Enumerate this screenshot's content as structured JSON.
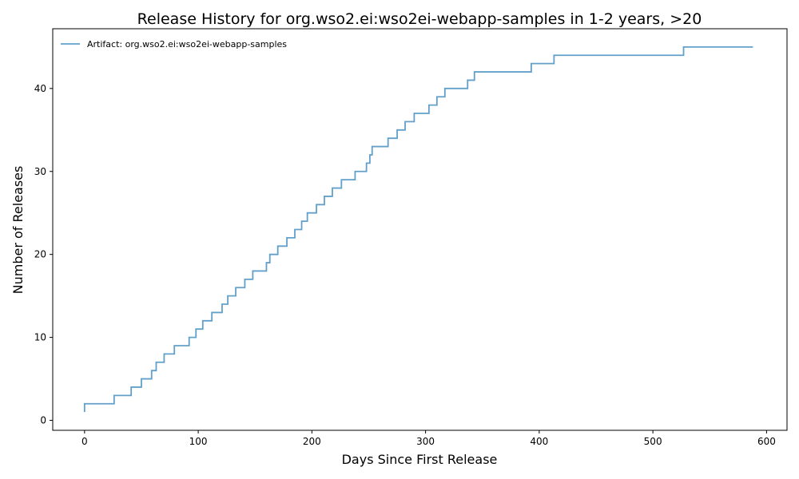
{
  "chart_data": {
    "type": "line",
    "title": "Release History for org.wso2.ei:wso2ei-webapp-samples in 1-2 years, >20",
    "xlabel": "Days Since First Release",
    "ylabel": "Number of Releases",
    "xlim": [
      -28,
      618
    ],
    "ylim": [
      -1.2,
      47.2
    ],
    "xticks": [
      0,
      100,
      200,
      300,
      400,
      500,
      600
    ],
    "yticks": [
      0,
      10,
      20,
      30,
      40
    ],
    "grid": false,
    "legend_position": "upper-left",
    "series": [
      {
        "name": "Artifact: org.wso2.ei:wso2ei-webapp-samples",
        "color": "#1f77b4",
        "step": "post",
        "x": [
          0,
          0,
          26,
          41,
          50,
          59,
          63,
          70,
          79,
          92,
          98,
          104,
          112,
          121,
          126,
          133,
          141,
          148,
          160,
          163,
          170,
          178,
          185,
          191,
          196,
          204,
          211,
          218,
          226,
          238,
          248,
          251,
          253,
          267,
          275,
          282,
          290,
          303,
          310,
          317,
          337,
          343,
          393,
          413,
          527,
          588
        ],
        "y": [
          1,
          2,
          3,
          4,
          5,
          6,
          7,
          8,
          9,
          10,
          11,
          12,
          13,
          14,
          15,
          16,
          17,
          18,
          19,
          20,
          21,
          22,
          23,
          24,
          25,
          26,
          27,
          28,
          29,
          30,
          31,
          32,
          33,
          34,
          35,
          36,
          37,
          38,
          39,
          40,
          41,
          42,
          43,
          44,
          45,
          45
        ]
      }
    ]
  }
}
